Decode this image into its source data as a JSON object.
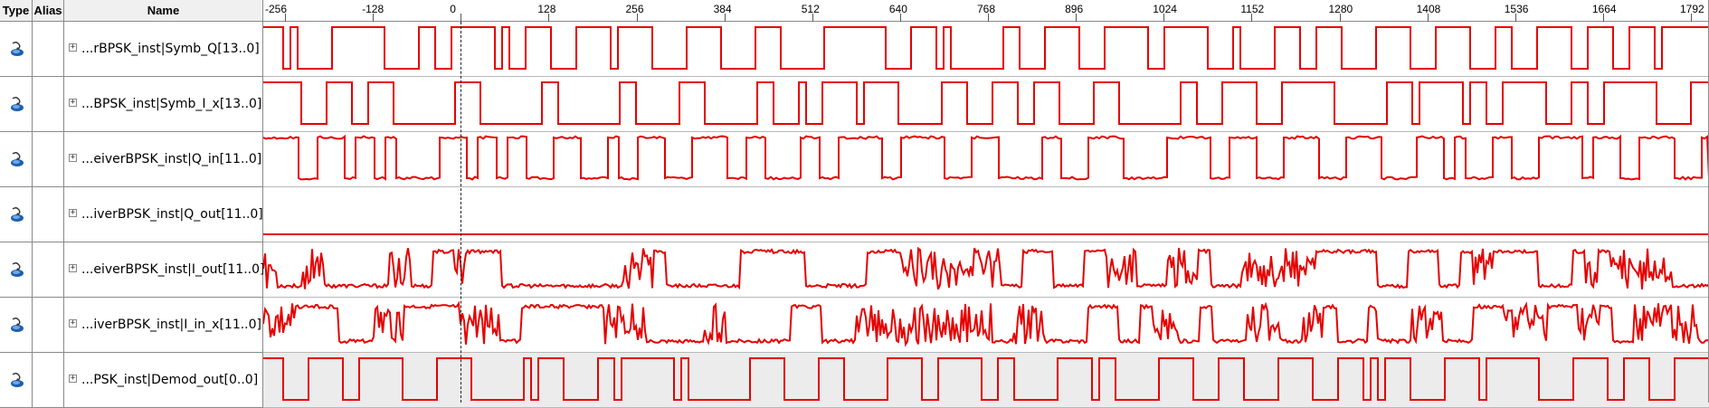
{
  "headers": {
    "type": "Type",
    "alias": "Alias",
    "name": "Name"
  },
  "timeline": {
    "ticks": [
      "-256",
      "-128",
      "0",
      "128",
      "256",
      "384",
      "512",
      "640",
      "768",
      "896",
      "1024",
      "1152",
      "1280",
      "1408",
      "1536",
      "1664",
      "1792"
    ],
    "start": -256,
    "end": 1792,
    "cursor": 0
  },
  "colors": {
    "trace": "#e60000",
    "selected_row_bg": "#ececec",
    "header_bg": "#f0f0f0"
  },
  "signals": [
    {
      "name": "...rBPSK_inst|Symb_Q[13..0]",
      "icon": "output-pin-icon",
      "expand": "⊞",
      "kind": "digital",
      "seed": 11
    },
    {
      "name": "...BPSK_inst|Symb_I_x[13..0]",
      "icon": "output-pin-icon",
      "expand": "⊞",
      "kind": "digital",
      "seed": 23
    },
    {
      "name": "...eiverBPSK_inst|Q_in[11..0]",
      "icon": "output-pin-icon",
      "expand": "⊞",
      "kind": "noisy",
      "seed": 37
    },
    {
      "name": "...iverBPSK_inst|Q_out[11..0]",
      "icon": "output-pin-icon",
      "expand": "⊞",
      "kind": "flat",
      "seed": 41
    },
    {
      "name": "...eiverBPSK_inst|I_out[11..0]",
      "icon": "output-pin-icon",
      "expand": "⊞",
      "kind": "analog",
      "seed": 53
    },
    {
      "name": "...iverBPSK_inst|I_in_x[11..0]",
      "icon": "output-pin-icon",
      "expand": "⊞",
      "kind": "analog",
      "seed": 67
    },
    {
      "name": "...PSK_inst|Demod_out[0..0]",
      "icon": "output-pin-icon",
      "expand": "⊞",
      "kind": "digital",
      "seed": 79,
      "selected": true
    }
  ]
}
